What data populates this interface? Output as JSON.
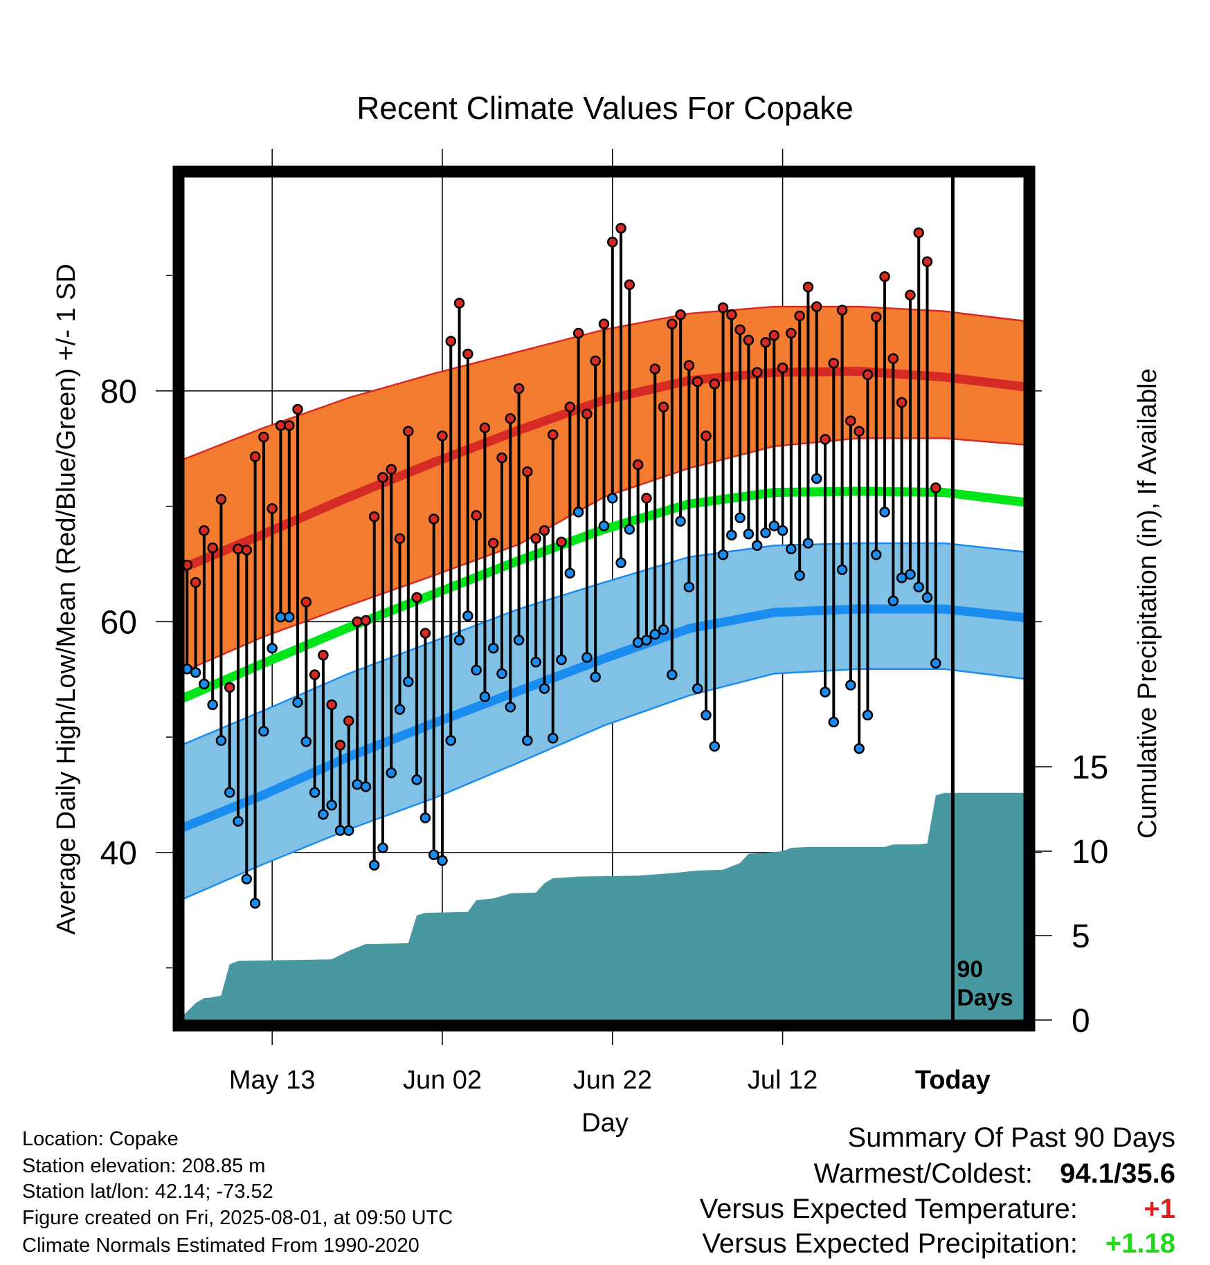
{
  "chart_data": {
    "type": "line",
    "title": "Recent Climate Values For Copake",
    "xlabel": "Day",
    "ylabel_left": "Average Daily High/Low/Mean (Red/Blue/Green) +/- 1 SD",
    "ylabel_right": "Cumulative Precipitation (in), If Available",
    "x_ticks": [
      {
        "day": 11,
        "label": "May 13"
      },
      {
        "day": 31,
        "label": "Jun 02"
      },
      {
        "day": 51,
        "label": "Jun 22"
      },
      {
        "day": 71,
        "label": "Jul 12"
      },
      {
        "day": 91,
        "label": "Today"
      }
    ],
    "xlim": [
      0,
      100
    ],
    "ylim_left": [
      25,
      99
    ],
    "y_ticks_left": [
      40,
      60,
      80
    ],
    "ylim_right": [
      0,
      15
    ],
    "y_ticks_right": [
      0,
      5,
      10,
      15
    ],
    "grid": true,
    "today_day": 91,
    "today_marker_label_1": "90",
    "today_marker_label_2": "Days",
    "normals": {
      "days": [
        0,
        10,
        20,
        30,
        40,
        50,
        60,
        70,
        80,
        90,
        100
      ],
      "high_mean": [
        64.5,
        67.6,
        70.8,
        73.8,
        76.6,
        79.2,
        80.9,
        81.6,
        81.7,
        81.2,
        80.3
      ],
      "high_upper": [
        73.9,
        76.8,
        79.4,
        81.5,
        83.4,
        85.3,
        86.7,
        87.3,
        87.3,
        86.9,
        86.0
      ],
      "high_lower": [
        55.5,
        58.7,
        61.4,
        64.0,
        66.7,
        70.8,
        73.3,
        75.2,
        75.9,
        75.9,
        75.3
      ],
      "mean": [
        53.2,
        56.4,
        59.5,
        62.4,
        65.3,
        68.0,
        70.2,
        71.2,
        71.3,
        71.2,
        70.3
      ],
      "low_mean": [
        42.0,
        45.0,
        48.3,
        51.2,
        54.0,
        56.8,
        59.4,
        60.8,
        61.1,
        61.1,
        60.3
      ],
      "low_upper": [
        49.2,
        52.3,
        55.5,
        58.3,
        61.1,
        63.4,
        65.6,
        66.6,
        66.8,
        66.8,
        66.0
      ],
      "low_lower": [
        35.8,
        39.0,
        42.0,
        44.7,
        47.8,
        51.0,
        53.6,
        55.5,
        55.9,
        55.9,
        55.0
      ]
    },
    "daily": {
      "high": [
        78.2,
        64.9,
        63.4,
        67.9,
        66.4,
        70.6,
        54.3,
        66.3,
        66.2,
        74.3,
        76.0,
        69.8,
        77.0,
        77.0,
        78.4,
        61.7,
        55.4,
        57.1,
        52.8,
        49.3,
        51.4,
        60.0,
        60.1,
        69.1,
        72.5,
        73.2,
        67.2,
        76.5,
        62.1,
        59.0,
        68.9,
        76.1,
        84.3,
        87.6,
        83.2,
        69.2,
        76.8,
        66.8,
        74.2,
        77.6,
        80.2,
        73.0,
        67.2,
        67.9,
        76.2,
        66.9,
        78.6,
        85.0,
        78.0,
        82.6,
        85.8,
        92.9,
        94.1,
        89.2,
        73.6,
        70.7,
        81.9,
        78.6,
        85.8,
        86.6,
        82.2,
        80.8,
        76.1,
        80.6,
        87.2,
        86.6,
        85.3,
        84.4,
        81.6,
        84.2,
        84.8,
        82.0,
        85.0,
        86.5,
        89.0,
        87.3,
        75.8,
        82.4,
        87.0,
        77.4,
        76.5,
        81.4,
        86.4,
        89.9,
        82.8,
        79.0,
        88.3,
        93.7,
        91.2,
        71.6
      ],
      "low": [
        53.6,
        55.9,
        55.6,
        54.6,
        52.8,
        49.7,
        45.2,
        42.7,
        37.7,
        35.6,
        50.5,
        57.7,
        60.4,
        60.4,
        53.0,
        49.6,
        45.2,
        43.3,
        44.1,
        41.9,
        41.9,
        45.9,
        45.7,
        38.9,
        40.4,
        46.9,
        52.4,
        54.8,
        46.3,
        43.0,
        39.8,
        39.3,
        49.7,
        58.4,
        60.5,
        55.8,
        53.5,
        57.7,
        55.5,
        52.6,
        58.4,
        49.7,
        56.5,
        54.2,
        49.9,
        56.7,
        64.2,
        69.5,
        56.9,
        55.2,
        68.3,
        70.7,
        65.1,
        68.0,
        58.2,
        58.4,
        58.9,
        59.3,
        55.4,
        68.7,
        63.0,
        54.2,
        51.9,
        49.2,
        65.8,
        67.5,
        69.0,
        67.6,
        66.6,
        67.7,
        68.3,
        67.9,
        66.3,
        64.0,
        66.8,
        72.4,
        53.9,
        51.3,
        64.5,
        54.5,
        49.0,
        51.9,
        65.8,
        69.5,
        61.8,
        63.8,
        64.1,
        63.0,
        62.1,
        56.4
      ]
    },
    "cumulative_precip": {
      "days": [
        0,
        1,
        2,
        3,
        4,
        5,
        6,
        7,
        18,
        20,
        22,
        27,
        28,
        29,
        34,
        35,
        37,
        38,
        39,
        42,
        43,
        44,
        46,
        47,
        54,
        58,
        60,
        61,
        64,
        66,
        67,
        69,
        71,
        72,
        74,
        83,
        84,
        87,
        88,
        89,
        90,
        100
      ],
      "values": [
        0.0,
        0.5,
        1.0,
        1.3,
        1.35,
        1.45,
        3.3,
        3.5,
        3.6,
        4.1,
        4.5,
        4.55,
        6.2,
        6.35,
        6.4,
        7.1,
        7.2,
        7.35,
        7.5,
        7.55,
        8.1,
        8.4,
        8.45,
        8.5,
        8.55,
        8.7,
        8.8,
        8.85,
        8.9,
        9.3,
        9.85,
        9.9,
        10.0,
        10.2,
        10.25,
        10.25,
        10.4,
        10.4,
        10.45,
        13.3,
        13.45,
        13.45
      ]
    },
    "colors": {
      "high_band": "#f47c30",
      "high_line": "#d62a24",
      "mean_line": "#00e41a",
      "low_band": "#82c1e6",
      "low_line": "#1b8cf0",
      "precip_fill": "#4898a2",
      "high_dot": "#d62a24",
      "low_dot": "#1b8cf0"
    }
  },
  "info": {
    "location": "Location: Copake",
    "elevation": "Station elevation: 208.85 m",
    "latlon": "Station lat/lon: 42.14; -73.52",
    "created": "Figure created on Fri, 2025-08-01, at 09:50 UTC",
    "normals": "Climate Normals Estimated From 1990-2020"
  },
  "summary": {
    "title": "Summary Of Past 90 Days",
    "warm_cold_label": "Warmest/Coldest:",
    "warm_cold_value": "94.1/35.6",
    "temp_label": "Versus Expected Temperature:",
    "temp_value": "+1",
    "temp_color": "#e21e1e",
    "precip_label": "Versus Expected Precipitation:",
    "precip_value": "+1.18",
    "precip_color": "#22d61a"
  }
}
